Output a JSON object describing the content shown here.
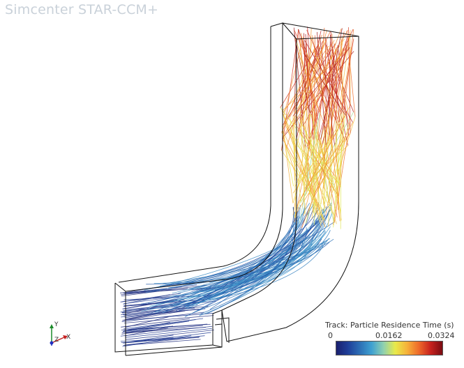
{
  "app": {
    "title": "Simcenter STAR-CCM+"
  },
  "scene": {
    "description_icon": "particle-track-scene"
  },
  "axes": {
    "y": "Y",
    "z": "Z",
    "x": "X"
  },
  "legend": {
    "title": "Track: Particle Residence Time (s)",
    "min": "0",
    "mid": "0.0162",
    "max": "0.0324",
    "colormap": [
      "#1a1f6e",
      "#1f3f99",
      "#2d6fb5",
      "#3fa1d1",
      "#8fd0b0",
      "#e8ea4a",
      "#f6b23a",
      "#ee6a2a",
      "#c7221e",
      "#7a0c12"
    ]
  }
}
